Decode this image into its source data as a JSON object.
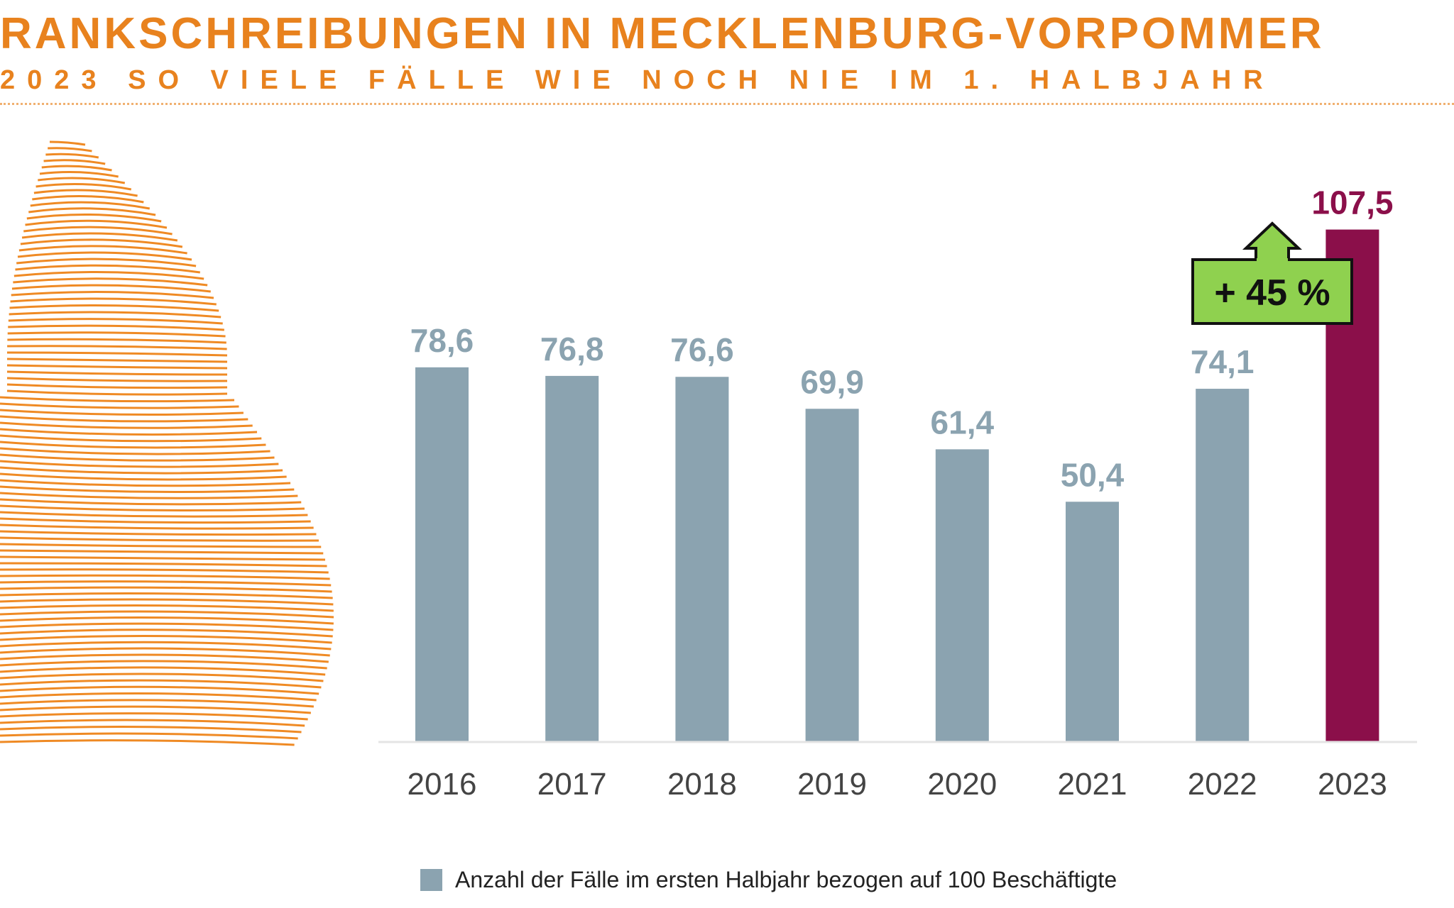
{
  "header": {
    "title": "RANKSCHREIBUNGEN IN MECKLENBURG-VORPOMMER",
    "subtitle": "2023 SO VIELE FÄLLE WIE NOCH NIE IM 1. HALBJAHR"
  },
  "chart_data": {
    "type": "bar",
    "categories": [
      "2016",
      "2017",
      "2018",
      "2019",
      "2020",
      "2021",
      "2022",
      "2023"
    ],
    "values": [
      78.6,
      76.8,
      76.6,
      69.9,
      61.4,
      50.4,
      74.1,
      107.5
    ],
    "value_labels": [
      "78,6",
      "76,8",
      "76,6",
      "69,9",
      "61,4",
      "50,4",
      "74,1",
      "107,5"
    ],
    "ylim": [
      0,
      110
    ],
    "grid": false,
    "legend": {
      "placement": "bottom",
      "entries": [
        "Anzahl der Fälle im ersten Halbjahr bezogen auf 100 Beschäftigte"
      ]
    },
    "annotation": "+ 45 %",
    "colors": {
      "bar": "#8ba3b0",
      "highlight": "#8b0f4a",
      "annotation": "#8fd14f",
      "title": "#e8821e"
    }
  }
}
